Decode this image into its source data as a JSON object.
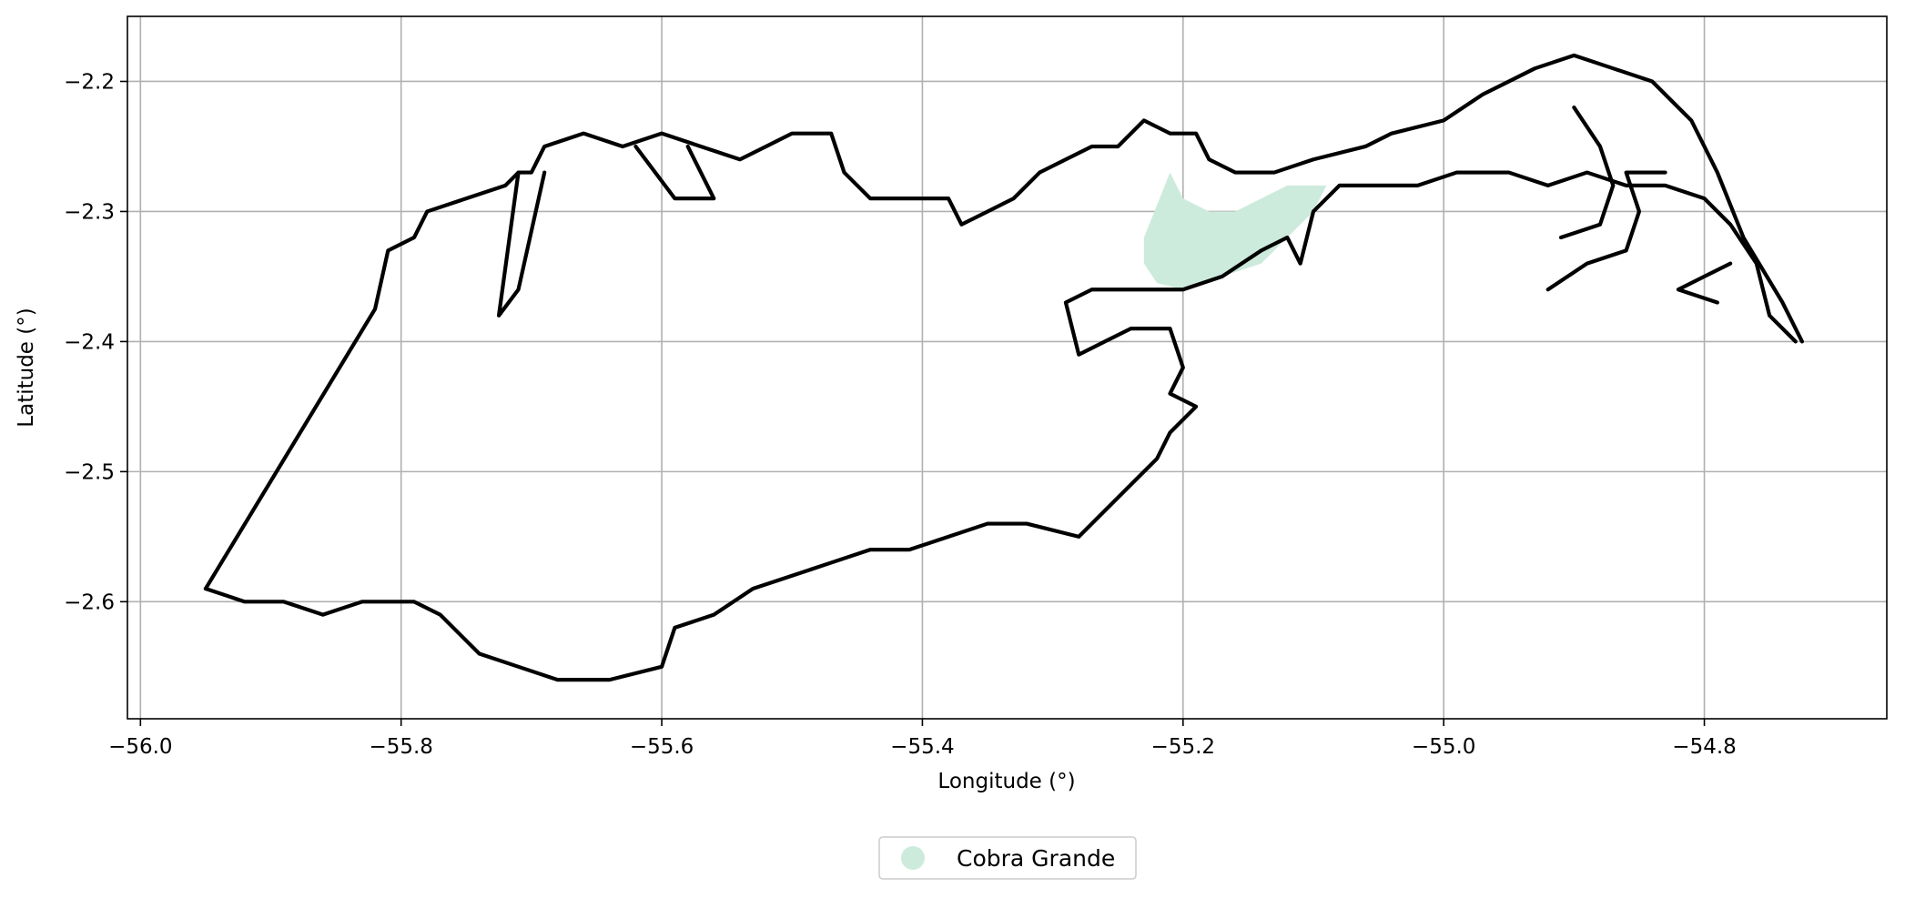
{
  "map": {
    "xlabel": "Longitude (°)",
    "ylabel": "Latitude (°)",
    "xlim": [
      -56.01,
      -54.66
    ],
    "ylim": [
      -2.69,
      -2.15
    ],
    "grid": true,
    "x_ticks": [
      -56.0,
      -55.8,
      -55.6,
      -55.4,
      -55.2,
      -55.0,
      -54.8
    ],
    "x_tick_labels": [
      "−56.0",
      "−55.8",
      "−55.6",
      "−55.4",
      "−55.2",
      "−55.0",
      "−54.8"
    ],
    "y_ticks": [
      -2.2,
      -2.3,
      -2.4,
      -2.5,
      -2.6
    ],
    "y_tick_labels": [
      "−2.2",
      "−2.3",
      "−2.4",
      "−2.5",
      "−2.6"
    ],
    "legend": {
      "position": "bottom-center",
      "entries": [
        {
          "label": "Cobra Grande",
          "color": "#cdebdd"
        }
      ]
    },
    "colors": {
      "boundary": "#000000",
      "highlight": "#cdebdd",
      "grid": "#b0b0b0"
    },
    "highlight_area": {
      "name": "Cobra Grande",
      "coords": [
        [
          -55.23,
          -2.32
        ],
        [
          -55.21,
          -2.27
        ],
        [
          -55.2,
          -2.29
        ],
        [
          -55.18,
          -2.3
        ],
        [
          -55.16,
          -2.3
        ],
        [
          -55.14,
          -2.29
        ],
        [
          -55.12,
          -2.28
        ],
        [
          -55.09,
          -2.28
        ],
        [
          -55.1,
          -2.3
        ],
        [
          -55.12,
          -2.32
        ],
        [
          -55.14,
          -2.34
        ],
        [
          -55.17,
          -2.35
        ],
        [
          -55.2,
          -2.36
        ],
        [
          -55.22,
          -2.355
        ],
        [
          -55.23,
          -2.34
        ]
      ]
    },
    "boundaries": [
      [
        [
          -55.95,
          -2.59
        ],
        [
          -55.82,
          -2.375
        ],
        [
          -55.81,
          -2.33
        ],
        [
          -55.79,
          -2.32
        ],
        [
          -55.78,
          -2.3
        ],
        [
          -55.75,
          -2.29
        ],
        [
          -55.72,
          -2.28
        ],
        [
          -55.71,
          -2.27
        ],
        [
          -55.7,
          -2.27
        ],
        [
          -55.69,
          -2.25
        ],
        [
          -55.66,
          -2.24
        ],
        [
          -55.63,
          -2.25
        ],
        [
          -55.6,
          -2.24
        ],
        [
          -55.57,
          -2.25
        ],
        [
          -55.54,
          -2.26
        ],
        [
          -55.52,
          -2.25
        ],
        [
          -55.5,
          -2.24
        ],
        [
          -55.47,
          -2.24
        ],
        [
          -55.46,
          -2.27
        ],
        [
          -55.44,
          -2.29
        ],
        [
          -55.42,
          -2.29
        ],
        [
          -55.4,
          -2.29
        ],
        [
          -55.38,
          -2.29
        ],
        [
          -55.37,
          -2.31
        ],
        [
          -55.35,
          -2.3
        ],
        [
          -55.33,
          -2.29
        ],
        [
          -55.31,
          -2.27
        ],
        [
          -55.29,
          -2.26
        ],
        [
          -55.27,
          -2.25
        ],
        [
          -55.25,
          -2.25
        ],
        [
          -55.23,
          -2.23
        ],
        [
          -55.21,
          -2.24
        ],
        [
          -55.19,
          -2.24
        ],
        [
          -55.18,
          -2.26
        ],
        [
          -55.16,
          -2.27
        ],
        [
          -55.13,
          -2.27
        ],
        [
          -55.1,
          -2.26
        ],
        [
          -55.06,
          -2.25
        ],
        [
          -55.04,
          -2.24
        ],
        [
          -55.0,
          -2.23
        ],
        [
          -54.97,
          -2.21
        ],
        [
          -54.93,
          -2.19
        ],
        [
          -54.9,
          -2.18
        ],
        [
          -54.87,
          -2.19
        ],
        [
          -54.84,
          -2.2
        ],
        [
          -54.81,
          -2.23
        ],
        [
          -54.79,
          -2.27
        ],
        [
          -54.77,
          -2.32
        ],
        [
          -54.74,
          -2.37
        ],
        [
          -54.725,
          -2.4
        ]
      ],
      [
        [
          -55.95,
          -2.59
        ],
        [
          -55.92,
          -2.6
        ],
        [
          -55.89,
          -2.6
        ],
        [
          -55.86,
          -2.61
        ],
        [
          -55.83,
          -2.6
        ],
        [
          -55.79,
          -2.6
        ],
        [
          -55.77,
          -2.61
        ],
        [
          -55.74,
          -2.64
        ],
        [
          -55.71,
          -2.65
        ],
        [
          -55.68,
          -2.66
        ],
        [
          -55.64,
          -2.66
        ],
        [
          -55.6,
          -2.65
        ],
        [
          -55.59,
          -2.62
        ],
        [
          -55.56,
          -2.61
        ],
        [
          -55.53,
          -2.59
        ],
        [
          -55.5,
          -2.58
        ],
        [
          -55.47,
          -2.57
        ],
        [
          -55.44,
          -2.56
        ],
        [
          -55.41,
          -2.56
        ],
        [
          -55.38,
          -2.55
        ],
        [
          -55.35,
          -2.54
        ],
        [
          -55.32,
          -2.54
        ],
        [
          -55.28,
          -2.55
        ],
        [
          -55.26,
          -2.53
        ],
        [
          -55.24,
          -2.51
        ],
        [
          -55.22,
          -2.49
        ],
        [
          -55.21,
          -2.47
        ],
        [
          -55.19,
          -2.45
        ],
        [
          -55.21,
          -2.44
        ],
        [
          -55.2,
          -2.42
        ],
        [
          -55.21,
          -2.39
        ],
        [
          -55.24,
          -2.39
        ],
        [
          -55.26,
          -2.4
        ],
        [
          -55.28,
          -2.41
        ],
        [
          -55.29,
          -2.37
        ],
        [
          -55.27,
          -2.36
        ],
        [
          -55.24,
          -2.36
        ],
        [
          -55.2,
          -2.36
        ],
        [
          -55.17,
          -2.35
        ],
        [
          -55.14,
          -2.33
        ],
        [
          -55.12,
          -2.32
        ],
        [
          -55.11,
          -2.34
        ],
        [
          -55.1,
          -2.3
        ],
        [
          -55.08,
          -2.28
        ],
        [
          -55.05,
          -2.28
        ],
        [
          -55.02,
          -2.28
        ],
        [
          -54.99,
          -2.27
        ],
        [
          -54.95,
          -2.27
        ],
        [
          -54.92,
          -2.28
        ],
        [
          -54.89,
          -2.27
        ],
        [
          -54.86,
          -2.28
        ],
        [
          -54.83,
          -2.28
        ],
        [
          -54.8,
          -2.29
        ],
        [
          -54.78,
          -2.31
        ],
        [
          -54.76,
          -2.34
        ],
        [
          -54.75,
          -2.38
        ],
        [
          -54.73,
          -2.4
        ]
      ],
      [
        [
          -55.71,
          -2.27
        ],
        [
          -55.725,
          -2.38
        ],
        [
          -55.71,
          -2.36
        ],
        [
          -55.69,
          -2.27
        ]
      ],
      [
        [
          -55.62,
          -2.25
        ],
        [
          -55.59,
          -2.29
        ],
        [
          -55.56,
          -2.29
        ],
        [
          -55.58,
          -2.25
        ]
      ],
      [
        [
          -54.91,
          -2.32
        ],
        [
          -54.88,
          -2.31
        ],
        [
          -54.87,
          -2.28
        ],
        [
          -54.88,
          -2.25
        ],
        [
          -54.9,
          -2.22
        ]
      ],
      [
        [
          -54.92,
          -2.36
        ],
        [
          -54.89,
          -2.34
        ],
        [
          -54.86,
          -2.33
        ],
        [
          -54.85,
          -2.3
        ],
        [
          -54.86,
          -2.27
        ],
        [
          -54.83,
          -2.27
        ]
      ],
      [
        [
          -54.79,
          -2.37
        ],
        [
          -54.82,
          -2.36
        ],
        [
          -54.8,
          -2.35
        ],
        [
          -54.78,
          -2.34
        ]
      ]
    ]
  }
}
